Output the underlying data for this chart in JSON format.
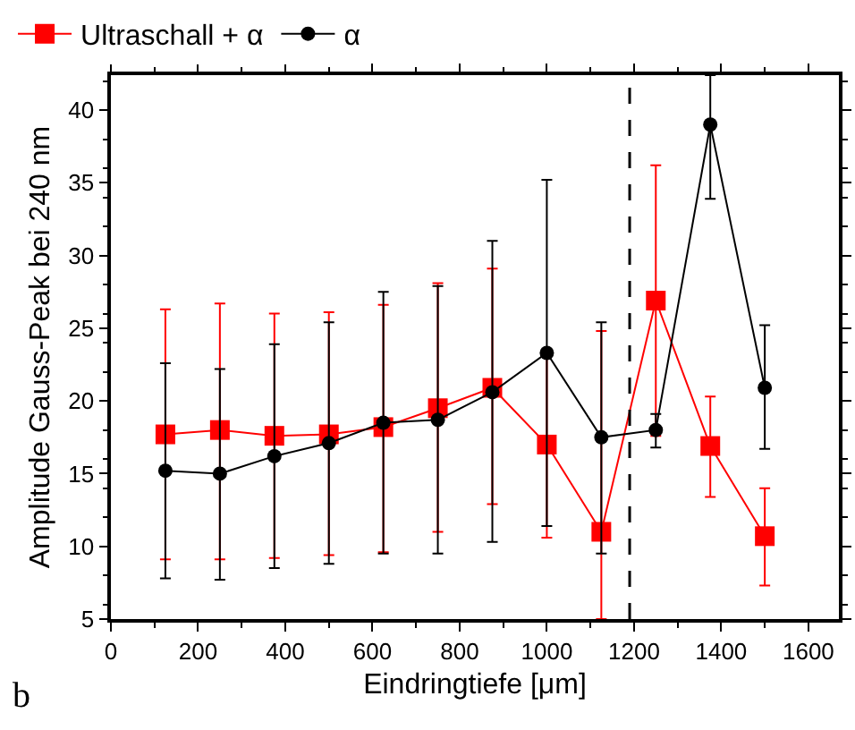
{
  "chart_data": {
    "type": "line",
    "xlabel": "Eindringtiefe [μm]",
    "ylabel": "Amplitude Gauss-Peak bei 240 nm",
    "x": [
      125,
      250,
      375,
      500,
      625,
      750,
      875,
      1000,
      1125,
      1250,
      1375,
      1500
    ],
    "series": [
      {
        "name": "Ultraschall + α",
        "color": "#ff0000",
        "marker": "square",
        "values": [
          17.7,
          18.0,
          17.6,
          17.7,
          18.2,
          19.5,
          20.9,
          17.0,
          11.0,
          26.9,
          16.9,
          10.7
        ],
        "errors": [
          [
            9.1,
            26.3
          ],
          [
            9.1,
            26.7
          ],
          [
            9.2,
            26.0
          ],
          [
            9.4,
            26.1
          ],
          [
            9.6,
            26.6
          ],
          [
            11.0,
            28.1
          ],
          [
            12.9,
            29.1
          ],
          [
            10.6,
            23.4
          ],
          [
            5,
            24.8
          ],
          [
            17.6,
            36.2
          ],
          [
            13.4,
            20.3
          ],
          [
            7.3,
            14.0
          ]
        ]
      },
      {
        "name": "α",
        "color": "#000000",
        "marker": "circle",
        "values": [
          15.2,
          15.0,
          16.2,
          17.1,
          18.5,
          18.7,
          20.6,
          23.3,
          17.5,
          18.0,
          39.0,
          20.9
        ],
        "errors": [
          [
            7.8,
            22.6
          ],
          [
            7.7,
            22.2
          ],
          [
            8.5,
            23.9
          ],
          [
            8.8,
            25.4
          ],
          [
            9.5,
            27.5
          ],
          [
            9.5,
            27.9
          ],
          [
            10.3,
            31.0
          ],
          [
            11.4,
            35.2
          ],
          [
            9.5,
            25.4
          ],
          [
            16.8,
            19.1
          ],
          [
            33.9,
            42.4
          ],
          [
            16.7,
            25.2
          ]
        ]
      }
    ],
    "xlim": [
      0,
      1670
    ],
    "xticks": [
      0,
      200,
      400,
      600,
      800,
      1000,
      1200,
      1400,
      1600
    ],
    "ylim": [
      5,
      42.4
    ],
    "yticks": [
      5,
      10,
      15,
      20,
      25,
      30,
      35,
      40
    ],
    "ref_lines": [
      {
        "axis": "x",
        "value": 1190,
        "color": "#000000",
        "line_style": "dashed"
      }
    ],
    "annotations": [
      "b"
    ],
    "legend": "top"
  }
}
